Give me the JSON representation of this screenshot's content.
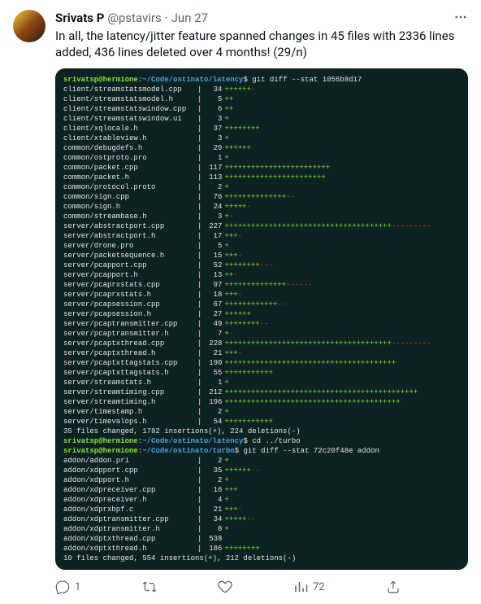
{
  "author": {
    "display_name": "Srivats P",
    "handle": "@pstavirs",
    "date": "Jun 27"
  },
  "tweet_text": "In all, the latency/jitter feature spanned changes in 45 files with 2336 lines added, 436 lines deleted over 4 months! (29/n)",
  "terminal": {
    "background_color": "#0b2122",
    "prompt_user_color": "#8ae234",
    "prompt_path_color": "#4aa3df",
    "text_color": "#e4e4e4",
    "plus_color": "#8ae234",
    "minus_color": "#ef2929",
    "prompts": [
      {
        "user": "srivatsp@hermione",
        "path": "~/Code/ostinato/latency",
        "cmd": "git diff --stat 1056b8d17"
      },
      {
        "user": "srivatsp@hermione",
        "path": "~/Code/ostinato/latency",
        "cmd": "cd ../turbo"
      },
      {
        "user": "srivatsp@hermione",
        "path": "~/Code/ostinato/turbo",
        "cmd": "git diff --stat 72c20f48e addon"
      }
    ],
    "block1": [
      {
        "file": "client/streamstatsmodel.cpp",
        "num": 34,
        "p": 6,
        "m": 1
      },
      {
        "file": "client/streamstatsmodel.h",
        "num": 5,
        "p": 2,
        "m": 0
      },
      {
        "file": "client/streamstatswindow.cpp",
        "num": 6,
        "p": 2,
        "m": 0
      },
      {
        "file": "client/streamstatswindow.ui",
        "num": 3,
        "p": 1,
        "m": 0
      },
      {
        "file": "client/xqlocale.h",
        "num": 37,
        "p": 8,
        "m": 0
      },
      {
        "file": "client/xtableview.h",
        "num": 3,
        "p": 1,
        "m": 0
      },
      {
        "file": "common/debugdefs.h",
        "num": 29,
        "p": 6,
        "m": 0
      },
      {
        "file": "common/ostproto.pro",
        "num": 1,
        "p": 1,
        "m": 0
      },
      {
        "file": "common/packet.cpp",
        "num": 117,
        "p": 24,
        "m": 0
      },
      {
        "file": "common/packet.h",
        "num": 113,
        "p": 23,
        "m": 0
      },
      {
        "file": "common/protocol.proto",
        "num": 2,
        "p": 1,
        "m": 0
      },
      {
        "file": "common/sign.cpp",
        "num": 76,
        "p": 14,
        "m": 2
      },
      {
        "file": "common/sign.h",
        "num": 24,
        "p": 5,
        "m": 1
      },
      {
        "file": "common/streambase.h",
        "num": 3,
        "p": 1,
        "m": 1
      },
      {
        "file": "server/abstractport.cpp",
        "num": 227,
        "p": 38,
        "m": 9
      },
      {
        "file": "server/abstractport.h",
        "num": 17,
        "p": 3,
        "m": 1
      },
      {
        "file": "server/drone.pro",
        "num": 5,
        "p": 1,
        "m": 0
      },
      {
        "file": "server/packetsequence.h",
        "num": 15,
        "p": 3,
        "m": 1
      },
      {
        "file": "server/pcapport.cpp",
        "num": 52,
        "p": 8,
        "m": 3
      },
      {
        "file": "server/pcapport.h",
        "num": 13,
        "p": 2,
        "m": 1
      },
      {
        "file": "server/pcaprxstats.cpp",
        "num": 97,
        "p": 14,
        "m": 6
      },
      {
        "file": "server/pcaprxstats.h",
        "num": 18,
        "p": 3,
        "m": 1
      },
      {
        "file": "server/pcapsession.cpp",
        "num": 67,
        "p": 12,
        "m": 2
      },
      {
        "file": "server/pcapsession.h",
        "num": 27,
        "p": 6,
        "m": 0
      },
      {
        "file": "server/pcaptransmitter.cpp",
        "num": 49,
        "p": 8,
        "m": 2
      },
      {
        "file": "server/pcaptransmitter.h",
        "num": 7,
        "p": 1,
        "m": 1
      },
      {
        "file": "server/pcaptxthread.cpp",
        "num": 228,
        "p": 38,
        "m": 9
      },
      {
        "file": "server/pcaptxthread.h",
        "num": 21,
        "p": 3,
        "m": 1
      },
      {
        "file": "server/pcaptxttagstats.cpp",
        "num": 190,
        "p": 39,
        "m": 0
      },
      {
        "file": "server/pcaptxttagstats.h",
        "num": 55,
        "p": 11,
        "m": 0
      },
      {
        "file": "server/streamstats.h",
        "num": 1,
        "p": 1,
        "m": 0
      },
      {
        "file": "server/streamtiming.cpp",
        "num": 212,
        "p": 44,
        "m": 0
      },
      {
        "file": "server/streamtiming.h",
        "num": 196,
        "p": 40,
        "m": 0
      },
      {
        "file": "server/timestamp.h",
        "num": 2,
        "p": 1,
        "m": 0
      },
      {
        "file": "server/timevalops.h",
        "num": 54,
        "p": 11,
        "m": 0
      }
    ],
    "summary1": "35 files changed, 1782 insertions(+), 224 deletions(-)",
    "block2": [
      {
        "file": "addon/addon.pri",
        "num": 2,
        "p": 1,
        "m": 0
      },
      {
        "file": "addon/xdpport.cpp",
        "num": 35,
        "p": 6,
        "m": 2
      },
      {
        "file": "addon/xdpport.h",
        "num": 2,
        "p": 1,
        "m": 0
      },
      {
        "file": "addon/xdpreceiver.cpp",
        "num": 16,
        "p": 3,
        "m": 0
      },
      {
        "file": "addon/xdpreceiver.h",
        "num": 4,
        "p": 1,
        "m": 0
      },
      {
        "file": "addon/xdprxbpf.c",
        "num": 21,
        "p": 3,
        "m": 1
      },
      {
        "file": "addon/xdptransmitter.cpp",
        "num": 34,
        "p": 5,
        "m": 2
      },
      {
        "file": "addon/xdptransmitter.h",
        "num": 8,
        "p": 1,
        "m": 0
      },
      {
        "file": "addon/xdptxthread.cpp",
        "num": 538,
        "p": 0,
        "m": 0
      },
      {
        "file": "addon/xdptxthread.h",
        "num": 186,
        "p": 8,
        "m": 0
      }
    ],
    "summary2": "10 files changed, 554 insertions(+), 212 deletions(-)"
  },
  "actions": {
    "reply_count": "1",
    "view_count": "72"
  }
}
